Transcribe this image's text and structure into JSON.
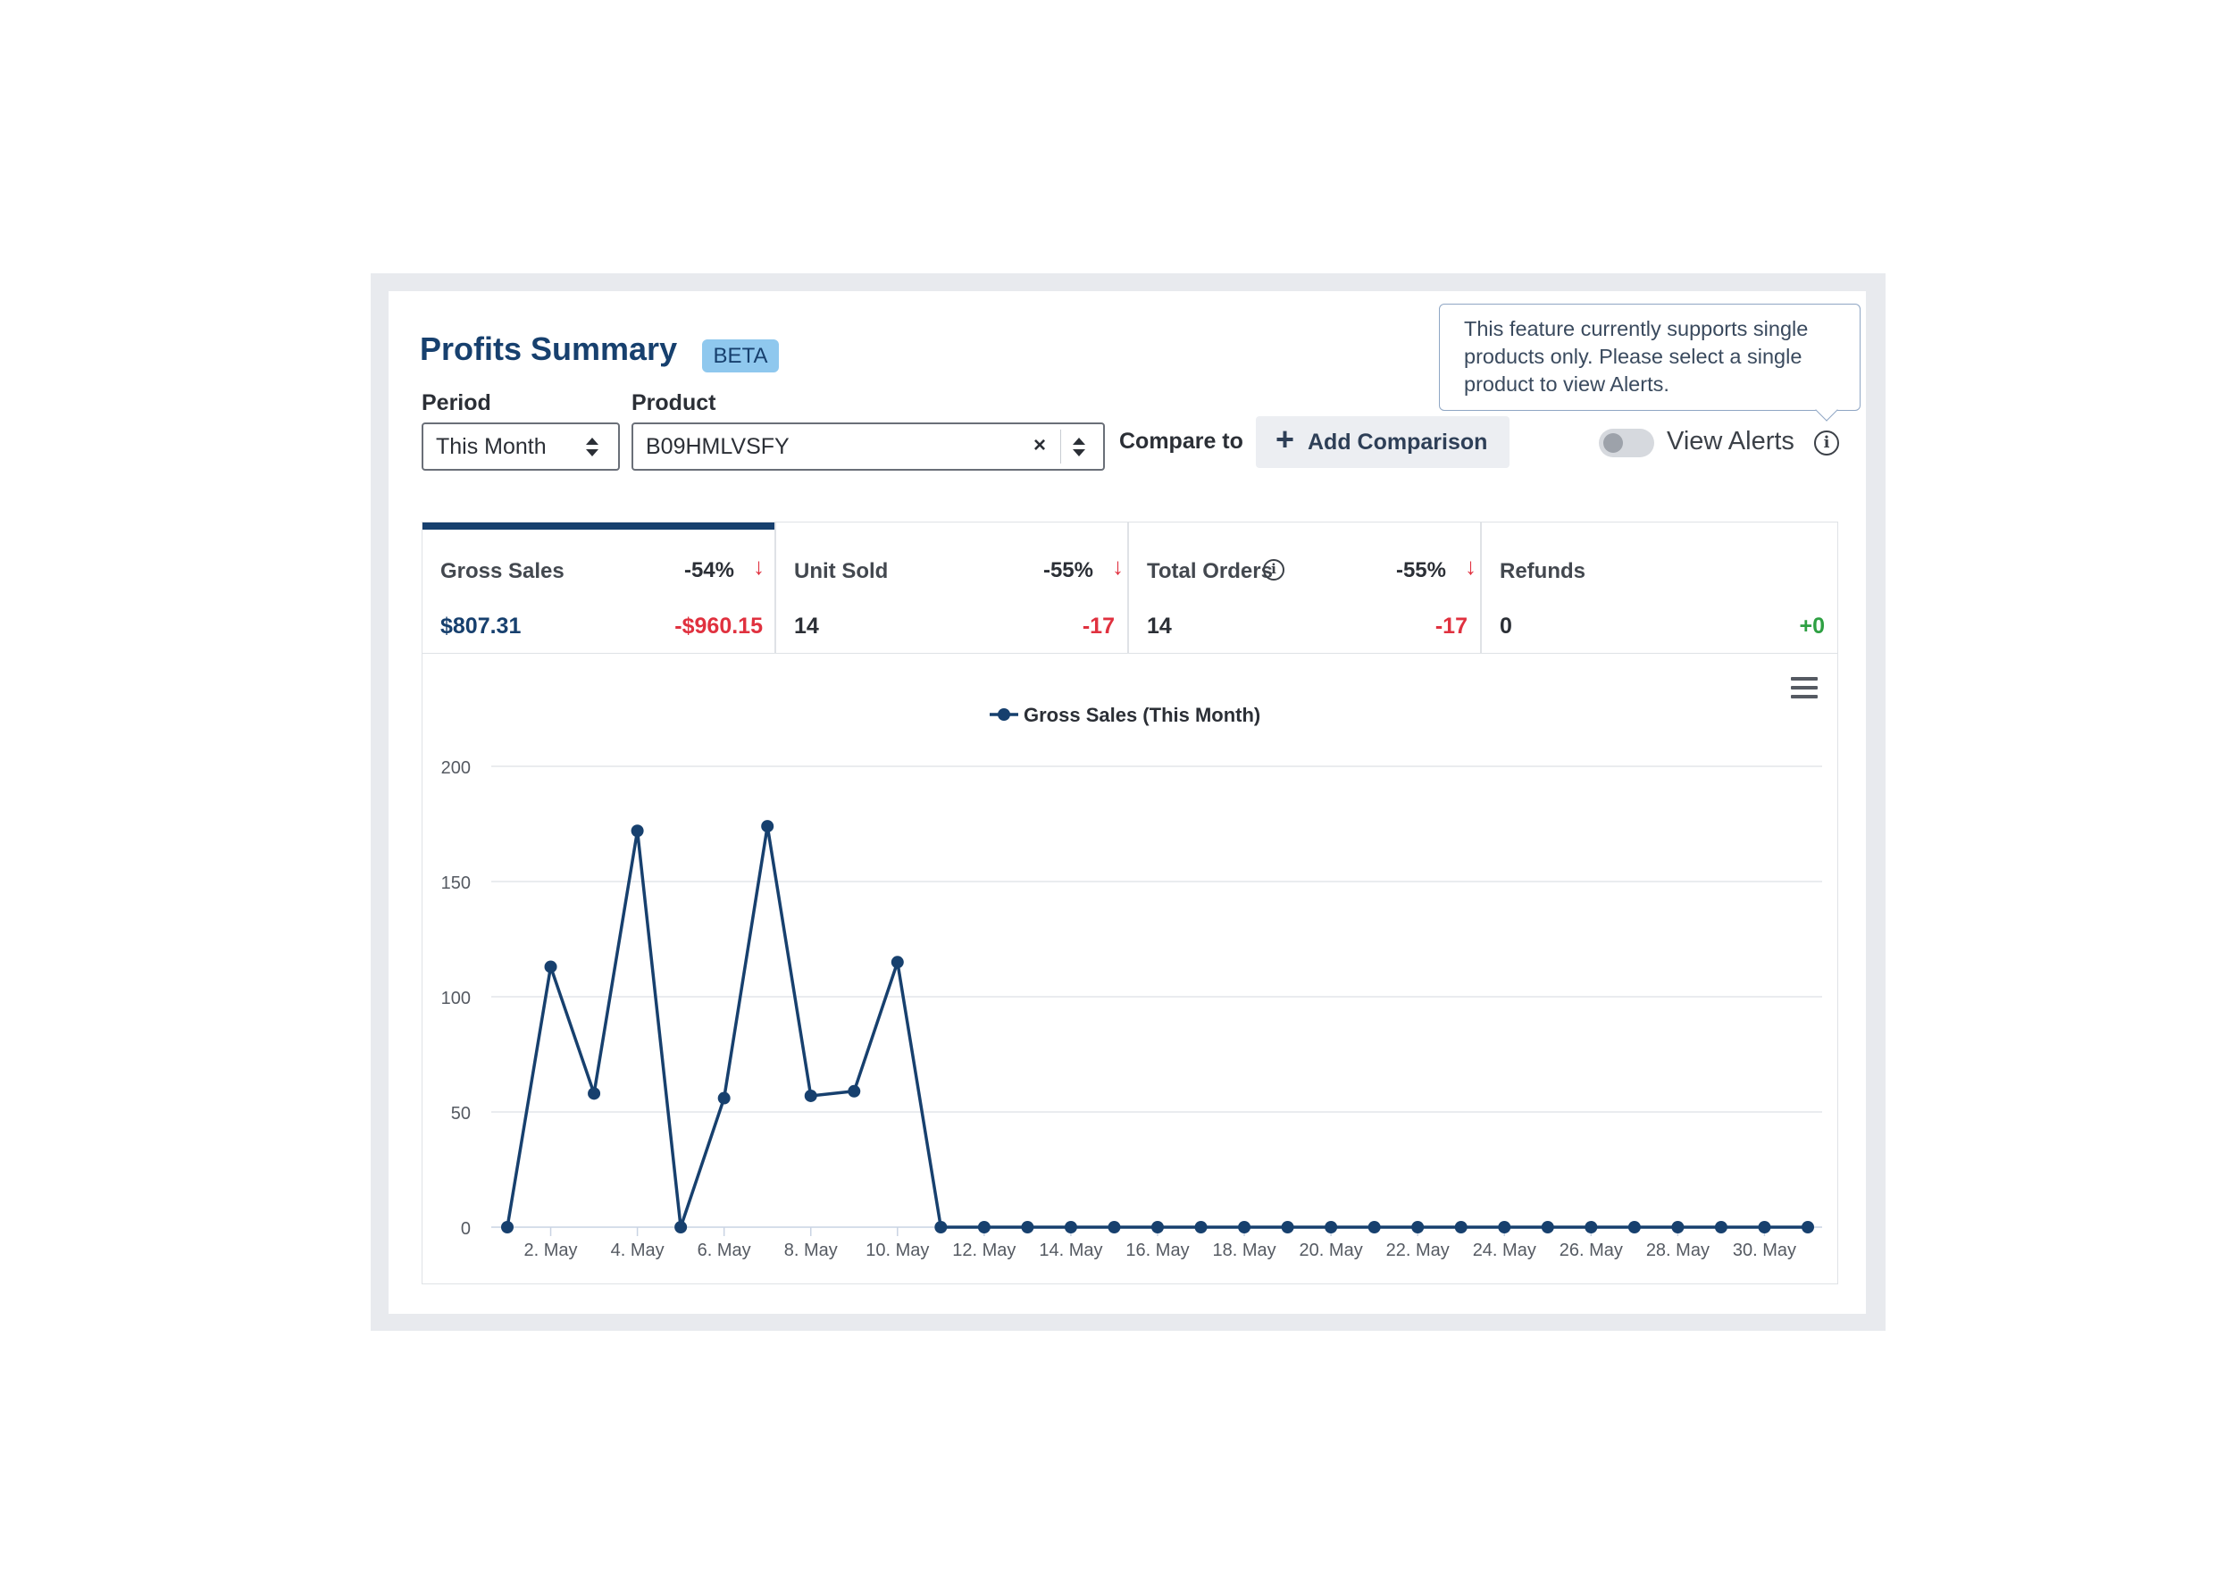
{
  "header": {
    "title": "Profits Summary",
    "badge": "BETA"
  },
  "filters": {
    "period_label": "Period",
    "period_value": "This Month",
    "product_label": "Product",
    "product_value": "B09HMLVSFY",
    "clear_glyph": "×",
    "compare_label": "Compare to",
    "add_comparison_label": "Add Comparison"
  },
  "alerts": {
    "toggle_label": "View Alerts",
    "toggle_on": false,
    "tooltip": "This feature currently supports single products only. Please select a single product to view Alerts."
  },
  "stats": [
    {
      "name": "Gross Sales",
      "pct": "-54%",
      "value": "$807.31",
      "delta": "-$960.15",
      "trend": "down",
      "delta_color": "#e0313f",
      "active": true
    },
    {
      "name": "Unit Sold",
      "pct": "-55%",
      "value": "14",
      "delta": "-17",
      "trend": "down",
      "delta_color": "#e0313f",
      "active": false
    },
    {
      "name": "Total Orders",
      "pct": "-55%",
      "value": "14",
      "delta": "-17",
      "trend": "down",
      "delta_color": "#e0313f",
      "active": false
    },
    {
      "name": "Refunds",
      "pct": "",
      "value": "0",
      "delta": "+0",
      "trend": "none",
      "delta_color": "#2ea043",
      "active": false
    }
  ],
  "colors": {
    "brand": "#17406e",
    "negative": "#e0313f",
    "positive": "#2ea043",
    "badge": "#8fc8ee"
  },
  "icons": {
    "chart_menu": "hamburger-menu-icon",
    "info": "info-circle-icon",
    "down": "arrow-down-icon",
    "add": "plus-icon"
  },
  "chart_data": {
    "type": "line",
    "legend": "Gross Sales (This Month)",
    "legend_position": "top-center",
    "grid": true,
    "ylim": [
      0,
      200
    ],
    "yticks": [
      0,
      50,
      100,
      150,
      200
    ],
    "x": [
      "1. May",
      "2. May",
      "3. May",
      "4. May",
      "5. May",
      "6. May",
      "7. May",
      "8. May",
      "9. May",
      "10. May",
      "11. May",
      "12. May",
      "13. May",
      "14. May",
      "15. May",
      "16. May",
      "17. May",
      "18. May",
      "19. May",
      "20. May",
      "21. May",
      "22. May",
      "23. May",
      "24. May",
      "25. May",
      "26. May",
      "27. May",
      "28. May",
      "29. May",
      "30. May",
      "31. May"
    ],
    "xtick_labels": [
      "2. May",
      "4. May",
      "6. May",
      "8. May",
      "10. May",
      "12. May",
      "14. May",
      "16. May",
      "18. May",
      "20. May",
      "22. May",
      "24. May",
      "26. May",
      "28. May",
      "30. May"
    ],
    "series": [
      {
        "name": "Gross Sales (This Month)",
        "color": "#17406e",
        "values": [
          0,
          113,
          58,
          172,
          0,
          56,
          174,
          57,
          59,
          115,
          0,
          0,
          0,
          0,
          0,
          0,
          0,
          0,
          0,
          0,
          0,
          0,
          0,
          0,
          0,
          0,
          0,
          0,
          0,
          0,
          0
        ]
      }
    ]
  }
}
